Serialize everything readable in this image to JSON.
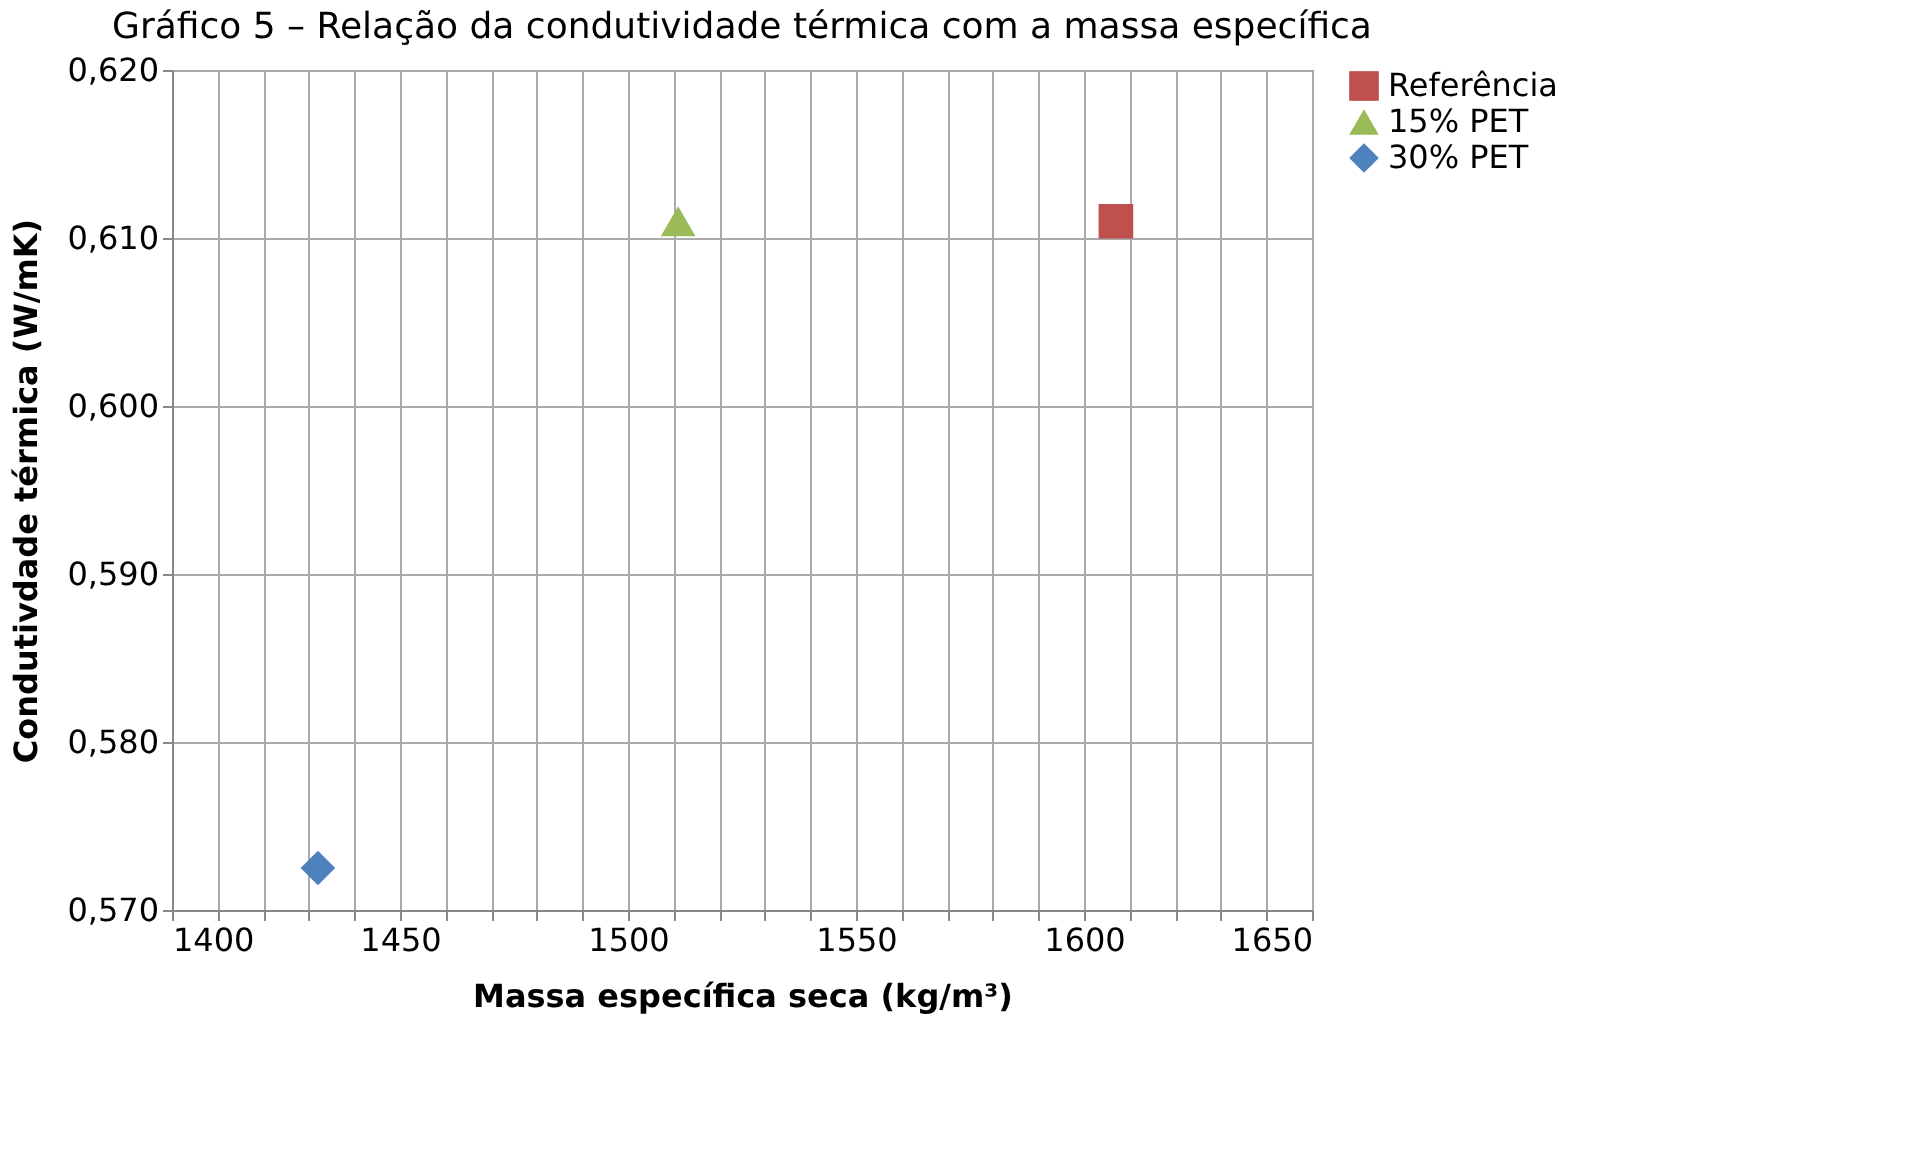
{
  "chart_data": {
    "type": "scatter",
    "title": "Gráfico 5 – Relação da condutividade térmica com a massa específica",
    "xlabel": "Massa específica seca (kg/m³)",
    "ylabel": "Condutivdade térmica (W/mK)",
    "series": [
      {
        "name": "Referência",
        "color": "#c0504d",
        "marker": "square",
        "x": [
          1607
        ],
        "values": [
          0.611
        ]
      },
      {
        "name": "15% PET",
        "color": "#9bbb59",
        "marker": "triangle",
        "x": [
          1511
        ],
        "values": [
          0.611
        ]
      },
      {
        "name": "30% PET",
        "color": "#4f81bd",
        "marker": "diamond",
        "x": [
          1432
        ],
        "values": [
          0.5725
        ]
      }
    ],
    "xlim": [
      1400,
      1650
    ],
    "xticks": [
      1400,
      {
        "value": 1410,
        "label": null
      },
      {
        "value": 1420,
        "label": null
      },
      {
        "value": 1430,
        "label": null
      },
      {
        "value": 1440,
        "label": null
      },
      1450,
      {
        "value": 1460,
        "label": null
      },
      {
        "value": 1470,
        "label": null
      },
      {
        "value": 1480,
        "label": null
      },
      {
        "value": 1490,
        "label": null
      },
      1500,
      {
        "value": 1510,
        "label": null
      },
      {
        "value": 1520,
        "label": null
      },
      {
        "value": 1530,
        "label": null
      },
      {
        "value": 1540,
        "label": null
      },
      1550,
      {
        "value": 1560,
        "label": null
      },
      {
        "value": 1570,
        "label": null
      },
      {
        "value": 1580,
        "label": null
      },
      {
        "value": 1590,
        "label": null
      },
      1600,
      {
        "value": 1610,
        "label": null
      },
      {
        "value": 1620,
        "label": null
      },
      {
        "value": 1630,
        "label": null
      },
      {
        "value": 1640,
        "label": null
      },
      1650
    ],
    "ylim": [
      0.57,
      0.62
    ],
    "yticks": [
      {
        "value": 0.57,
        "label": "0,570"
      },
      {
        "value": 0.58,
        "label": "0,580"
      },
      {
        "value": 0.59,
        "label": "0,590"
      },
      {
        "value": 0.6,
        "label": "0,600"
      },
      {
        "value": 0.61,
        "label": "0,610"
      },
      {
        "value": 0.62,
        "label": "0,620"
      }
    ],
    "grid": true,
    "legend": "right"
  }
}
